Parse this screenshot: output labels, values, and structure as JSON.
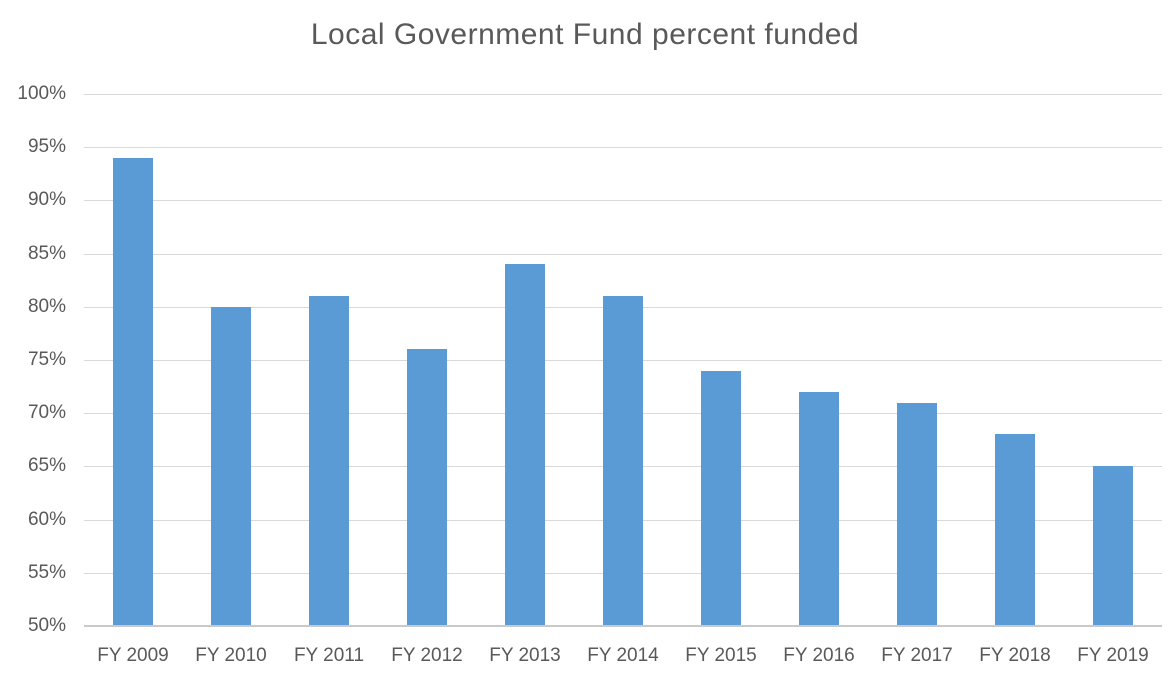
{
  "title": "Local Government Fund percent funded",
  "colors": {
    "bar": "#5B9BD5",
    "gridline": "#D9D9D9",
    "axis_line": "#C9C9C9",
    "text": "#595959",
    "background": "#FFFFFF"
  },
  "chart_data": {
    "type": "bar",
    "title": "Local Government Fund percent funded",
    "categories": [
      "FY 2009",
      "FY 2010",
      "FY 2011",
      "FY 2012",
      "FY 2013",
      "FY 2014",
      "FY 2015",
      "FY 2016",
      "FY 2017",
      "FY 2018",
      "FY 2019"
    ],
    "values": [
      94,
      80,
      81,
      76,
      84,
      81,
      74,
      72,
      71,
      68,
      65
    ],
    "xlabel": "",
    "ylabel": "",
    "ylim": [
      50,
      100
    ],
    "ytick_step": 5,
    "ytick_labels": [
      "100%",
      "95%",
      "90%",
      "85%",
      "80%",
      "75%",
      "70%",
      "65%",
      "60%",
      "55%",
      "50%"
    ],
    "value_unit": "percent",
    "grid": true,
    "legend": false
  }
}
